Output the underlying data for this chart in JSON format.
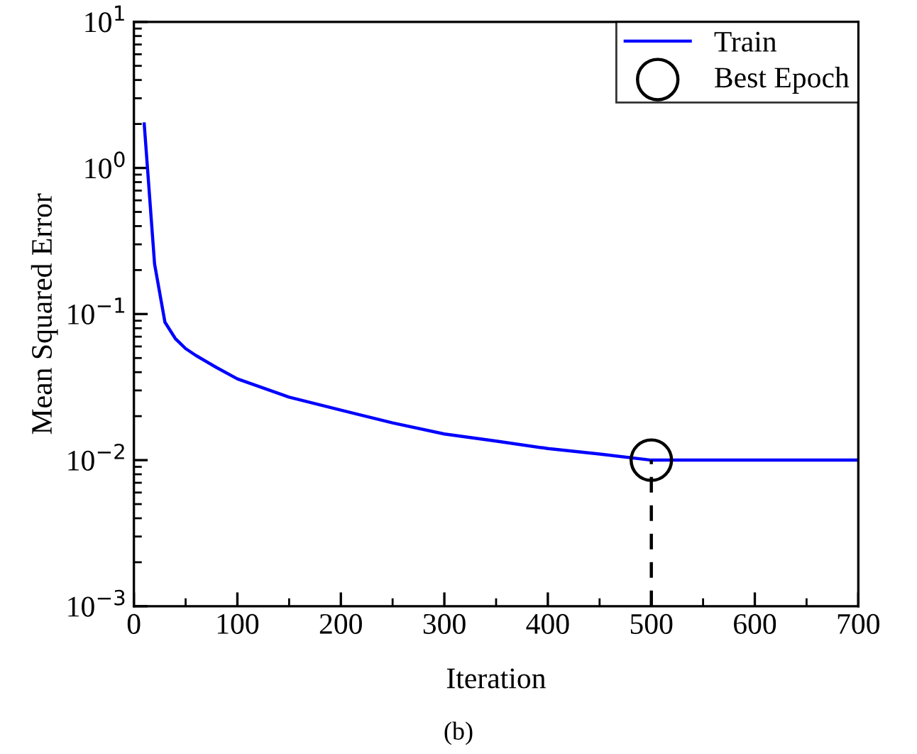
{
  "chart_data": {
    "type": "line",
    "xlabel": "Iteration",
    "ylabel": "Mean Squared Error",
    "log": "y",
    "xlim": [
      0,
      700
    ],
    "ylim": [
      0.001,
      10
    ],
    "xticks": [
      0,
      100,
      200,
      300,
      400,
      500,
      600,
      700
    ],
    "yticks": [
      {
        "value": 0.001,
        "label": "10$^{−3}$"
      },
      {
        "value": 0.01,
        "label": "10$^{−2}$"
      },
      {
        "value": 0.1,
        "label": "10$^{−1}$"
      },
      {
        "value": 1,
        "label": "10$^{0}$"
      },
      {
        "value": 10,
        "label": "10$^{1}$"
      }
    ],
    "legend": "top right",
    "grid": false,
    "series": [
      {
        "name": "Train",
        "color": "#0000ff",
        "x": [
          10,
          20,
          30,
          40,
          50,
          60,
          80,
          100,
          150,
          200,
          250,
          300,
          350,
          400,
          450,
          500,
          550,
          600,
          650,
          700
        ],
        "values": [
          2.0,
          0.22,
          0.088,
          0.068,
          0.058,
          0.052,
          0.043,
          0.036,
          0.027,
          0.022,
          0.018,
          0.0151,
          0.0135,
          0.012,
          0.011,
          0.01,
          0.01,
          0.01,
          0.01,
          0.01
        ]
      },
      {
        "name": "Best Epoch",
        "type": "scatter",
        "marker": "circle",
        "color": "#000000",
        "x": [
          500
        ],
        "values": [
          0.01
        ]
      },
      {
        "type": "line",
        "line_style": "dashed",
        "color": "#000000",
        "x": [
          500,
          500
        ],
        "values": [
          0.001,
          0.01
        ]
      }
    ],
    "annotations": [
      "(b)"
    ]
  }
}
